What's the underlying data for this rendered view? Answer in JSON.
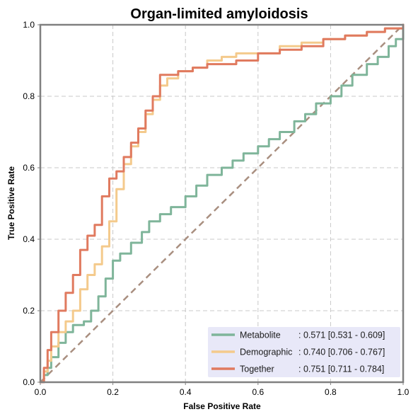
{
  "chart_data": {
    "type": "line",
    "title": "Organ-limited amyloidosis",
    "xlabel": "False Positive Rate",
    "ylabel": "True Positive Rate",
    "xlim": [
      0,
      1
    ],
    "ylim": [
      0,
      1
    ],
    "x_ticks": [
      "0.0",
      "0.2",
      "0.4",
      "0.6",
      "0.8",
      "1.0"
    ],
    "y_ticks": [
      "0.0",
      "0.2",
      "0.4",
      "0.6",
      "0.8",
      "1.0"
    ],
    "grid": true,
    "legend_position": "bottom-right",
    "legend_background": "#e8e8f8",
    "chance_line": {
      "color": "#a98f80",
      "x": [
        0,
        1
      ],
      "y": [
        0,
        1
      ]
    },
    "series": [
      {
        "name": "Metabolite",
        "stat_label": ": 0.571 [0.531 - 0.609]",
        "color": "#7fb59a",
        "x": [
          0,
          0.01,
          0.02,
          0.03,
          0.05,
          0.07,
          0.09,
          0.12,
          0.14,
          0.16,
          0.18,
          0.2,
          0.22,
          0.25,
          0.28,
          0.3,
          0.33,
          0.36,
          0.4,
          0.43,
          0.46,
          0.5,
          0.53,
          0.56,
          0.6,
          0.63,
          0.66,
          0.7,
          0.73,
          0.76,
          0.8,
          0.83,
          0.86,
          0.9,
          0.93,
          0.96,
          0.98,
          1.0
        ],
        "y": [
          0,
          0.02,
          0.04,
          0.07,
          0.11,
          0.14,
          0.16,
          0.17,
          0.2,
          0.24,
          0.29,
          0.34,
          0.36,
          0.39,
          0.42,
          0.45,
          0.47,
          0.49,
          0.52,
          0.55,
          0.58,
          0.6,
          0.62,
          0.64,
          0.66,
          0.68,
          0.7,
          0.73,
          0.75,
          0.78,
          0.8,
          0.83,
          0.86,
          0.89,
          0.91,
          0.94,
          0.96,
          1.0
        ]
      },
      {
        "name": "Demographic",
        "stat_label": ": 0.740 [0.706 - 0.767]",
        "color": "#f4ca8c",
        "x": [
          0,
          0.01,
          0.02,
          0.03,
          0.05,
          0.07,
          0.09,
          0.11,
          0.13,
          0.15,
          0.17,
          0.19,
          0.21,
          0.23,
          0.25,
          0.27,
          0.29,
          0.31,
          0.33,
          0.35,
          0.38,
          0.42,
          0.46,
          0.5,
          0.54,
          0.6,
          0.66,
          0.72,
          0.78,
          0.84,
          0.9,
          0.95,
          1.0
        ],
        "y": [
          0,
          0.03,
          0.06,
          0.1,
          0.14,
          0.17,
          0.2,
          0.26,
          0.3,
          0.33,
          0.38,
          0.45,
          0.54,
          0.61,
          0.66,
          0.7,
          0.75,
          0.79,
          0.83,
          0.85,
          0.87,
          0.88,
          0.9,
          0.91,
          0.92,
          0.92,
          0.94,
          0.95,
          0.96,
          0.97,
          0.98,
          0.99,
          1.0
        ]
      },
      {
        "name": "Together",
        "stat_label": ": 0.751 [0.711 - 0.784]",
        "color": "#e07a5f",
        "x": [
          0,
          0.01,
          0.02,
          0.03,
          0.05,
          0.07,
          0.09,
          0.11,
          0.13,
          0.15,
          0.17,
          0.19,
          0.21,
          0.23,
          0.25,
          0.27,
          0.29,
          0.31,
          0.33,
          0.35,
          0.38,
          0.42,
          0.46,
          0.5,
          0.54,
          0.6,
          0.66,
          0.72,
          0.78,
          0.84,
          0.9,
          0.95,
          1.0
        ],
        "y": [
          0,
          0.04,
          0.09,
          0.14,
          0.2,
          0.25,
          0.3,
          0.37,
          0.41,
          0.44,
          0.52,
          0.57,
          0.59,
          0.63,
          0.67,
          0.71,
          0.76,
          0.8,
          0.86,
          0.86,
          0.87,
          0.88,
          0.89,
          0.89,
          0.9,
          0.92,
          0.93,
          0.94,
          0.96,
          0.97,
          0.98,
          0.99,
          1.0
        ]
      }
    ]
  }
}
